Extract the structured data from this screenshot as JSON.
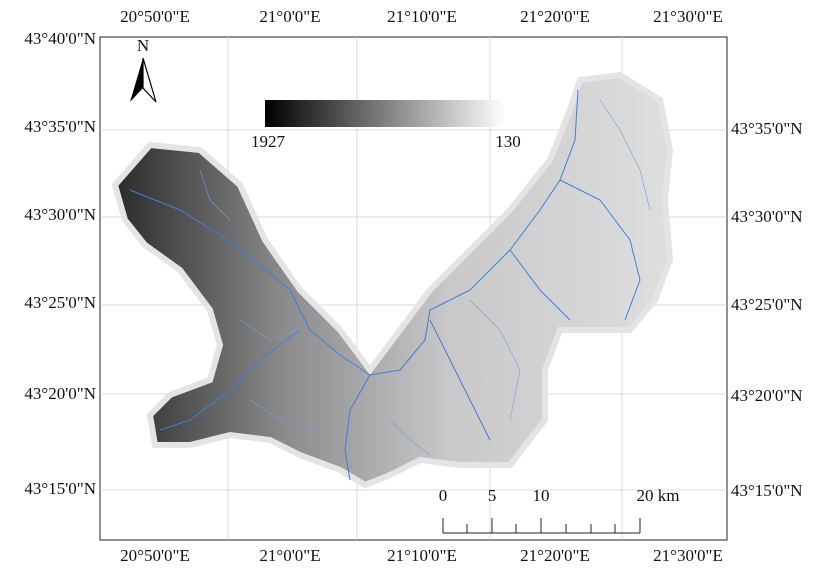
{
  "map": {
    "lon_labels": [
      "20°50'0\"E",
      "21°0'0\"E",
      "21°10'0\"E",
      "21°20'0\"E",
      "21°30'0\"E"
    ],
    "lat_labels": [
      "43°40'0\"N",
      "43°35'0\"N",
      "43°30'0\"N",
      "43°25'0\"N",
      "43°20'0\"N",
      "43°15'0\"N"
    ],
    "legend": {
      "high": "1927",
      "low": "130"
    },
    "north": "N",
    "scale": {
      "labels": [
        "0",
        "5",
        "10",
        "20 km"
      ]
    }
  }
}
